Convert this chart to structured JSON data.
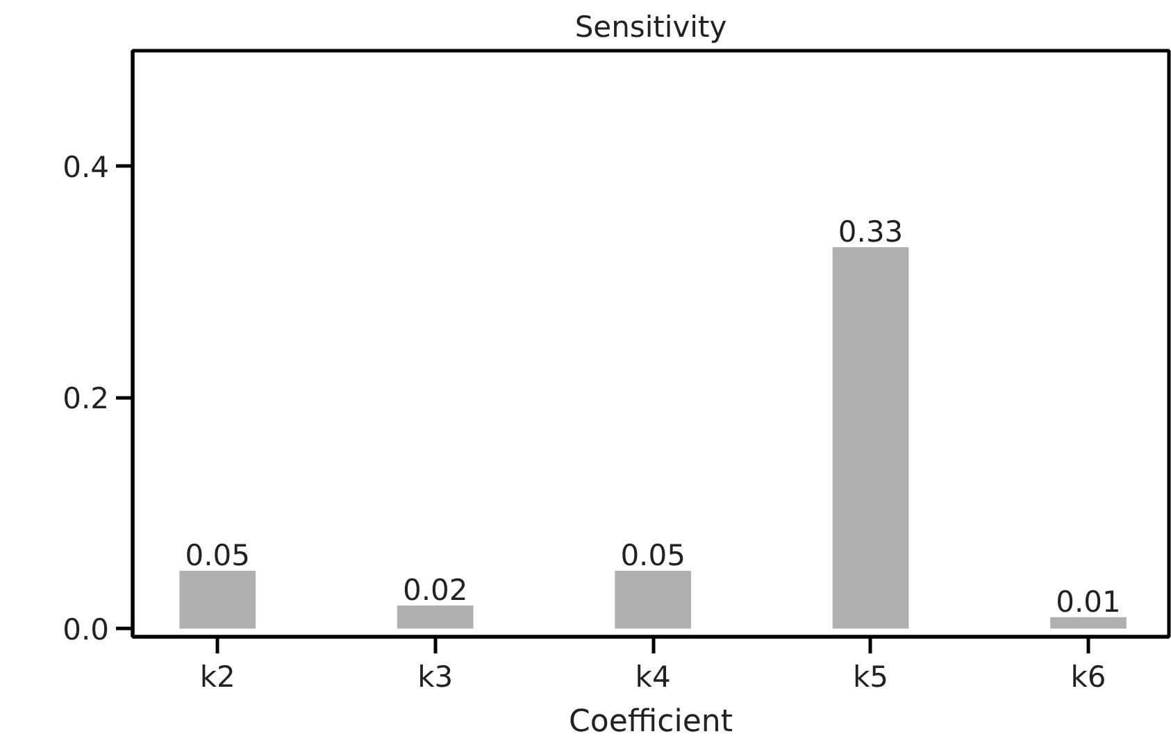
{
  "chart_data": {
    "type": "bar",
    "title": "Sensitivity",
    "xlabel": "Coefficient",
    "categories": [
      "k2",
      "k3",
      "k4",
      "k5",
      "k6"
    ],
    "values": [
      0.05,
      0.02,
      0.05,
      0.33,
      0.01
    ],
    "color": "#b0b0b0",
    "data_labels": true,
    "ylim": [
      -0.007,
      0.5
    ],
    "yticks": [
      {
        "value": 0,
        "label": "0.0"
      },
      0.2,
      0.4
    ]
  }
}
